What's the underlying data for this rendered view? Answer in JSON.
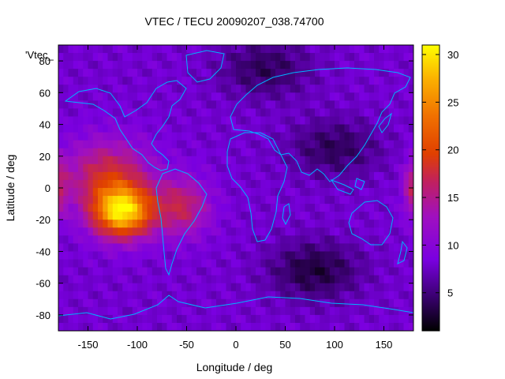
{
  "chart_data": {
    "type": "heatmap",
    "title": "VTEC / TECU 20090207_038.74700",
    "xlabel": "Longitude / deg",
    "ylabel": "Latitude / deg",
    "series_label": "'Vtec_",
    "xlim": [
      -180,
      180
    ],
    "ylim": [
      -90,
      90
    ],
    "x_ticks": [
      -150,
      -100,
      -50,
      0,
      50,
      100,
      150
    ],
    "y_ticks": [
      -80,
      -60,
      -40,
      -20,
      0,
      20,
      40,
      60,
      80
    ],
    "colorbar": {
      "range": [
        1,
        31
      ],
      "ticks": [
        5,
        10,
        15,
        20,
        25,
        30
      ],
      "palette": [
        "#000000",
        "#3a0070",
        "#7a00e0",
        "#a010c0",
        "#c02060",
        "#e04000",
        "#f07000",
        "#fbb000",
        "#ffff00"
      ]
    },
    "baseline_tecu": 8,
    "features": [
      {
        "name": "equatorial-anomaly-pacific",
        "lon": -115,
        "lat": -15,
        "peak_tecu": 30
      },
      {
        "name": "anomaly-north-crest",
        "lon": -120,
        "lat": 10,
        "peak_tecu": 20
      },
      {
        "name": "anomaly-east-lobe",
        "lon": -55,
        "lat": -12,
        "peak_tecu": 17
      },
      {
        "name": "dateline-east-edge",
        "lon": 180,
        "lat": 0,
        "peak_tecu": 17
      }
    ],
    "lows": [
      {
        "lon": 80,
        "lat": -52,
        "min_tecu": 3
      },
      {
        "lon": 100,
        "lat": 25,
        "min_tecu": 4
      },
      {
        "lon": 30,
        "lat": 75,
        "min_tecu": 4
      }
    ]
  }
}
